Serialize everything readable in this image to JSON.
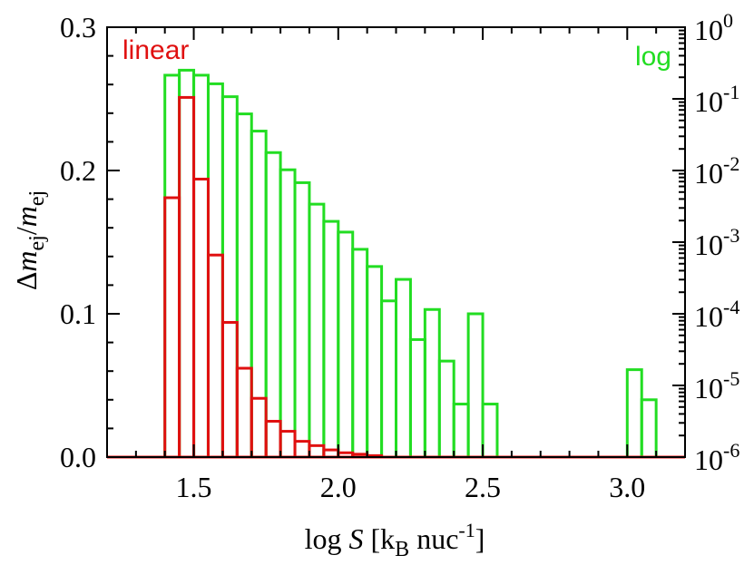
{
  "chart_data": {
    "type": "bar",
    "style": "step-histogram",
    "xlabel": {
      "prefix": "log ",
      "var": "S",
      "bracket_open": " [k",
      "sub": "B",
      "mid": " nuc",
      "sup": "-1",
      "bracket_close": "]"
    },
    "ylabel_left": {
      "delta": "Δ",
      "m1": "m",
      "sub1": "ej",
      "slash": "/",
      "m2": "m",
      "sub2": "ej"
    },
    "xlim": [
      1.2,
      3.2
    ],
    "ylim_left": [
      0.0,
      0.3
    ],
    "ylim_right_log10": [
      -6,
      0
    ],
    "x_ticks": [
      {
        "value": 1.5,
        "label": "1.5"
      },
      {
        "value": 2.0,
        "label": "2.0"
      },
      {
        "value": 2.5,
        "label": "2.5"
      },
      {
        "value": 3.0,
        "label": "3.0"
      }
    ],
    "y_ticks_left": [
      {
        "value": 0.0,
        "label": "0.0"
      },
      {
        "value": 0.1,
        "label": "0.1"
      },
      {
        "value": 0.2,
        "label": "0.2"
      },
      {
        "value": 0.3,
        "label": "0.3"
      }
    ],
    "y_ticks_right": [
      {
        "exp": -6,
        "base": "10",
        "sup": "-6"
      },
      {
        "exp": -5,
        "base": "10",
        "sup": "-5"
      },
      {
        "exp": -4,
        "base": "10",
        "sup": "-4"
      },
      {
        "exp": -3,
        "base": "10",
        "sup": "-3"
      },
      {
        "exp": -2,
        "base": "10",
        "sup": "-2"
      },
      {
        "exp": -1,
        "base": "10",
        "sup": "-1"
      },
      {
        "exp": 0,
        "base": "10",
        "sup": "0"
      }
    ],
    "bin_width": 0.05,
    "series": [
      {
        "name": "linear",
        "axis": "left",
        "color": "#e01010",
        "bins": [
          {
            "x0": 1.4,
            "value": 0.181
          },
          {
            "x0": 1.45,
            "value": 0.251
          },
          {
            "x0": 1.5,
            "value": 0.194
          },
          {
            "x0": 1.55,
            "value": 0.141
          },
          {
            "x0": 1.6,
            "value": 0.094
          },
          {
            "x0": 1.65,
            "value": 0.062
          },
          {
            "x0": 1.7,
            "value": 0.041
          },
          {
            "x0": 1.75,
            "value": 0.025
          },
          {
            "x0": 1.8,
            "value": 0.018
          },
          {
            "x0": 1.85,
            "value": 0.011
          },
          {
            "x0": 1.9,
            "value": 0.008
          },
          {
            "x0": 1.95,
            "value": 0.005
          },
          {
            "x0": 2.0,
            "value": 0.003
          },
          {
            "x0": 2.05,
            "value": 0.002
          },
          {
            "x0": 2.1,
            "value": 0.001
          }
        ]
      },
      {
        "name": "log",
        "axis": "right",
        "color": "#22dd22",
        "bins": [
          {
            "x0": 1.4,
            "log10": -0.67
          },
          {
            "x0": 1.45,
            "log10": -0.6
          },
          {
            "x0": 1.5,
            "log10": -0.67
          },
          {
            "x0": 1.55,
            "log10": -0.79
          },
          {
            "x0": 1.6,
            "log10": -0.97
          },
          {
            "x0": 1.65,
            "log10": -1.21
          },
          {
            "x0": 1.7,
            "log10": -1.45
          },
          {
            "x0": 1.75,
            "log10": -1.75
          },
          {
            "x0": 1.8,
            "log10": -1.99
          },
          {
            "x0": 1.85,
            "log10": -2.17
          },
          {
            "x0": 1.9,
            "log10": -2.47
          },
          {
            "x0": 1.95,
            "log10": -2.71
          },
          {
            "x0": 2.0,
            "log10": -2.86
          },
          {
            "x0": 2.05,
            "log10": -3.1
          },
          {
            "x0": 2.1,
            "log10": -3.34
          },
          {
            "x0": 2.15,
            "log10": -3.82
          },
          {
            "x0": 2.2,
            "log10": -3.52
          },
          {
            "x0": 2.25,
            "log10": -4.36
          },
          {
            "x0": 2.3,
            "log10": -3.94
          },
          {
            "x0": 2.35,
            "log10": -4.66
          },
          {
            "x0": 2.4,
            "log10": -5.26
          },
          {
            "x0": 2.45,
            "log10": -4.0
          },
          {
            "x0": 2.5,
            "log10": -5.26
          },
          {
            "x0": 2.55,
            "log10": -6.0
          },
          {
            "x0": 2.6,
            "log10": -6.0
          },
          {
            "x0": 2.65,
            "log10": -6.0
          },
          {
            "x0": 2.7,
            "log10": -6.0
          },
          {
            "x0": 2.75,
            "log10": -6.0
          },
          {
            "x0": 2.8,
            "log10": -6.0
          },
          {
            "x0": 2.85,
            "log10": -6.0
          },
          {
            "x0": 2.9,
            "log10": -6.0
          },
          {
            "x0": 2.95,
            "log10": -6.0
          },
          {
            "x0": 3.0,
            "log10": -4.78
          },
          {
            "x0": 3.05,
            "log10": -5.2
          }
        ]
      }
    ]
  }
}
